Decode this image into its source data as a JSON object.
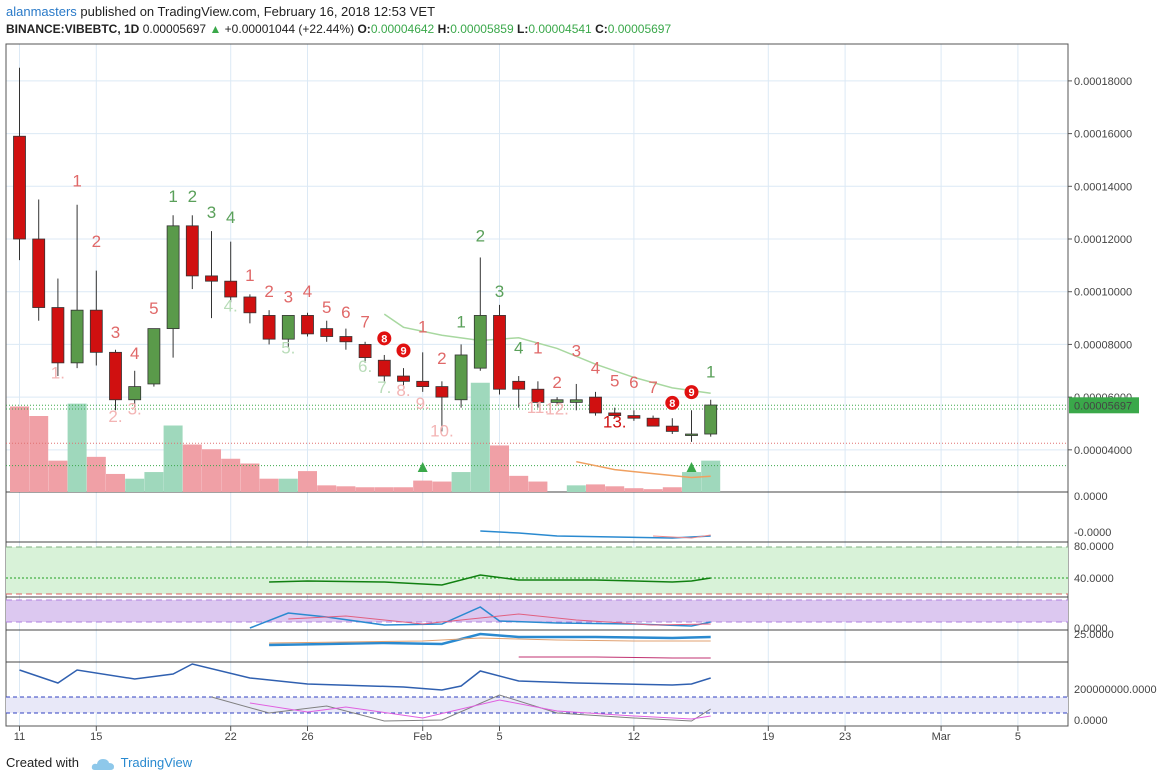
{
  "header": {
    "user": "alanmasters",
    "published": " published on TradingView.com, February 16, 2018 12:53 VET",
    "symbol": "BINANCE:VIBEBTC, 1D",
    "last": "0.00005697",
    "change": "+0.00001044 (+22.44%)",
    "o_label": "O:",
    "o_value": "0.00004642",
    "h_label": "H:",
    "h_value": "0.00005859",
    "l_label": "L:",
    "l_value": "0.00004541",
    "c_label": "C:",
    "c_value": "0.00005697"
  },
  "footer": {
    "created": "Created with",
    "brand": "TradingView"
  },
  "colors": {
    "up": "#5a9a4a",
    "down": "#d01010",
    "volUp": "#9fd8bc",
    "volDown": "#f0a0a6",
    "grid": "#dce9f5",
    "priceTag": "#3aa84a"
  },
  "chart_data": {
    "type": "candlestick",
    "x_ticks": [
      {
        "label": "11",
        "i": 0
      },
      {
        "label": "15",
        "i": 4
      },
      {
        "label": "22",
        "i": 11
      },
      {
        "label": "26",
        "i": 15
      },
      {
        "label": "Feb",
        "i": 21
      },
      {
        "label": "5",
        "i": 25
      },
      {
        "label": "12",
        "i": 32
      },
      {
        "label": "19",
        "i": 39
      },
      {
        "label": "23",
        "i": 43
      },
      {
        "label": "Mar",
        "i": 48
      },
      {
        "label": "5",
        "i": 52
      }
    ],
    "y_ticks": [
      "0.00018000",
      "0.00016000",
      "0.00014000",
      "0.00012000",
      "0.00010000",
      "0.00008000",
      "0.00006000",
      "0.00004000"
    ],
    "y_tick_values": [
      0.00018,
      0.00016,
      0.00014,
      0.00012,
      0.0001,
      8e-05,
      6e-05,
      4e-05
    ],
    "ylim": [
      2.4e-05,
      0.000194
    ],
    "last_price_tag": "0.00005697",
    "candles": [
      {
        "o": 0.000159,
        "h": 0.000185,
        "l": 0.000112,
        "c": 0.00012
      },
      {
        "o": 0.00012,
        "h": 0.000135,
        "l": 8.9e-05,
        "c": 9.4e-05
      },
      {
        "o": 9.4e-05,
        "h": 0.000105,
        "l": 6.8e-05,
        "c": 7.3e-05
      },
      {
        "o": 7.3e-05,
        "h": 0.000133,
        "l": 7.1e-05,
        "c": 9.3e-05
      },
      {
        "o": 9.3e-05,
        "h": 0.000108,
        "l": 7.2e-05,
        "c": 7.7e-05
      },
      {
        "o": 7.7e-05,
        "h": 7.8e-05,
        "l": 5.5e-05,
        "c": 5.9e-05
      },
      {
        "o": 5.9e-05,
        "h": 7e-05,
        "l": 5.6e-05,
        "c": 6.4e-05
      },
      {
        "o": 6.5e-05,
        "h": 8.6e-05,
        "l": 6.4e-05,
        "c": 8.6e-05
      },
      {
        "o": 8.6e-05,
        "h": 0.000129,
        "l": 7.5e-05,
        "c": 0.000125
      },
      {
        "o": 0.000125,
        "h": 0.000129,
        "l": 0.000101,
        "c": 0.000106
      },
      {
        "o": 0.000106,
        "h": 0.000123,
        "l": 9e-05,
        "c": 0.000104
      },
      {
        "o": 0.000104,
        "h": 0.000119,
        "l": 9.6e-05,
        "c": 9.8e-05
      },
      {
        "o": 9.8e-05,
        "h": 9.9e-05,
        "l": 8.8e-05,
        "c": 9.2e-05
      },
      {
        "o": 9.1e-05,
        "h": 9.3e-05,
        "l": 8e-05,
        "c": 8.2e-05
      },
      {
        "o": 8.2e-05,
        "h": 9.1e-05,
        "l": 7.9e-05,
        "c": 9.1e-05
      },
      {
        "o": 9.1e-05,
        "h": 9.2e-05,
        "l": 8.3e-05,
        "c": 8.4e-05
      },
      {
        "o": 8.6e-05,
        "h": 8.9e-05,
        "l": 8.1e-05,
        "c": 8.3e-05
      },
      {
        "o": 8.3e-05,
        "h": 8.6e-05,
        "l": 7.8e-05,
        "c": 8.1e-05
      },
      {
        "o": 8e-05,
        "h": 8.1e-05,
        "l": 7.3e-05,
        "c": 7.5e-05
      },
      {
        "o": 7.4e-05,
        "h": 7.6e-05,
        "l": 6.6e-05,
        "c": 6.8e-05
      },
      {
        "o": 6.8e-05,
        "h": 7.1e-05,
        "l": 6.4e-05,
        "c": 6.6e-05
      },
      {
        "o": 6.6e-05,
        "h": 7.7e-05,
        "l": 6.2e-05,
        "c": 6.4e-05
      },
      {
        "o": 6.4e-05,
        "h": 6.6e-05,
        "l": 4.7e-05,
        "c": 6e-05
      },
      {
        "o": 5.9e-05,
        "h": 8e-05,
        "l": 5.6e-05,
        "c": 7.6e-05
      },
      {
        "o": 7.1e-05,
        "h": 0.000113,
        "l": 7e-05,
        "c": 9.1e-05
      },
      {
        "o": 9.1e-05,
        "h": 9.5e-05,
        "l": 6.1e-05,
        "c": 6.3e-05
      },
      {
        "o": 6.6e-05,
        "h": 6.8e-05,
        "l": 5.6e-05,
        "c": 6.3e-05
      },
      {
        "o": 6.3e-05,
        "h": 6.6e-05,
        "l": 5.6e-05,
        "c": 5.8e-05
      },
      {
        "o": 5.8e-05,
        "h": 6e-05,
        "l": 5.7e-05,
        "c": 5.9e-05
      },
      {
        "o": 5.8e-05,
        "h": 6.5e-05,
        "l": 5.5e-05,
        "c": 5.9e-05
      },
      {
        "o": 6e-05,
        "h": 6.2e-05,
        "l": 5.3e-05,
        "c": 5.4e-05
      },
      {
        "o": 5.4e-05,
        "h": 5.6e-05,
        "l": 5.2e-05,
        "c": 5.3e-05
      },
      {
        "o": 5.3e-05,
        "h": 5.5e-05,
        "l": 5.1e-05,
        "c": 5.2e-05
      },
      {
        "o": 5.2e-05,
        "h": 5.3e-05,
        "l": 4.9e-05,
        "c": 4.9e-05
      },
      {
        "o": 4.9e-05,
        "h": 5.2e-05,
        "l": 4.6e-05,
        "c": 4.7e-05
      },
      {
        "o": 4.6e-05,
        "h": 5.5e-05,
        "l": 4.3e-05,
        "c": 4.6e-05
      },
      {
        "o": 4.6e-05,
        "h": 5.9e-05,
        "l": 4.5e-05,
        "c": 5.7e-05
      }
    ],
    "volume": [
      {
        "v": 0.9,
        "up": false
      },
      {
        "v": 0.8,
        "up": false
      },
      {
        "v": 0.33,
        "up": false
      },
      {
        "v": 0.93,
        "up": true
      },
      {
        "v": 0.37,
        "up": false
      },
      {
        "v": 0.19,
        "up": false
      },
      {
        "v": 0.14,
        "up": true
      },
      {
        "v": 0.21,
        "up": true
      },
      {
        "v": 0.7,
        "up": true
      },
      {
        "v": 0.5,
        "up": false
      },
      {
        "v": 0.45,
        "up": false
      },
      {
        "v": 0.35,
        "up": false
      },
      {
        "v": 0.3,
        "up": false
      },
      {
        "v": 0.14,
        "up": false
      },
      {
        "v": 0.14,
        "up": true
      },
      {
        "v": 0.22,
        "up": false
      },
      {
        "v": 0.07,
        "up": false
      },
      {
        "v": 0.06,
        "up": false
      },
      {
        "v": 0.05,
        "up": false
      },
      {
        "v": 0.05,
        "up": false
      },
      {
        "v": 0.05,
        "up": false
      },
      {
        "v": 0.12,
        "up": false
      },
      {
        "v": 0.11,
        "up": false
      },
      {
        "v": 0.21,
        "up": true
      },
      {
        "v": 1.15,
        "up": true
      },
      {
        "v": 0.49,
        "up": false
      },
      {
        "v": 0.17,
        "up": false
      },
      {
        "v": 0.11,
        "up": false
      },
      {
        "v": 0.0,
        "up": false
      },
      {
        "v": 0.07,
        "up": true
      },
      {
        "v": 0.08,
        "up": false
      },
      {
        "v": 0.06,
        "up": false
      },
      {
        "v": 0.04,
        "up": false
      },
      {
        "v": 0.03,
        "up": false
      },
      {
        "v": 0.05,
        "up": false
      },
      {
        "v": 0.21,
        "up": true
      },
      {
        "v": 0.33,
        "up": true
      }
    ],
    "td_labels": [
      {
        "i": 3,
        "text": "1",
        "color": "#e06868",
        "y": 0.00014
      },
      {
        "i": 4,
        "text": "2",
        "color": "#e06868",
        "y": 0.000117
      },
      {
        "i": 5,
        "text": "3",
        "color": "#e06868",
        "y": 8.25e-05
      },
      {
        "i": 6,
        "text": "4",
        "color": "#e06868",
        "y": 7.45e-05
      },
      {
        "i": 7,
        "text": "5",
        "color": "#e06868",
        "y": 9.15e-05
      },
      {
        "i": 8,
        "text": "1",
        "color": "#5aa05a",
        "y": 0.000134
      },
      {
        "i": 9,
        "text": "2",
        "color": "#5aa05a",
        "y": 0.000134
      },
      {
        "i": 10,
        "text": "3",
        "color": "#5aa05a",
        "y": 0.000128
      },
      {
        "i": 11,
        "text": "4",
        "color": "#5aa05a",
        "y": 0.000126
      },
      {
        "i": 12,
        "text": "1",
        "color": "#e06868",
        "y": 0.000104
      },
      {
        "i": 13,
        "text": "2",
        "color": "#e06868",
        "y": 9.8e-05
      },
      {
        "i": 14,
        "text": "3",
        "color": "#e06868",
        "y": 9.6e-05
      },
      {
        "i": 15,
        "text": "4",
        "color": "#e06868",
        "y": 9.8e-05
      },
      {
        "i": 16,
        "text": "5",
        "color": "#e06868",
        "y": 9.2e-05
      },
      {
        "i": 17,
        "text": "6",
        "color": "#e06868",
        "y": 9e-05
      },
      {
        "i": 18,
        "text": "7",
        "color": "#e06868",
        "y": 8.65e-05
      },
      {
        "i": 21,
        "text": "1",
        "color": "#e06868",
        "y": 8.45e-05
      },
      {
        "i": 22,
        "text": "2",
        "color": "#e06868",
        "y": 7.25e-05
      },
      {
        "i": 23,
        "text": "1",
        "color": "#5aa05a",
        "y": 8.65e-05
      },
      {
        "i": 24,
        "text": "2",
        "color": "#5aa05a",
        "y": 0.000119
      },
      {
        "i": 25,
        "text": "3",
        "color": "#5aa05a",
        "y": 9.8e-05
      },
      {
        "i": 26,
        "text": "4",
        "color": "#5aa05a",
        "y": 7.65e-05
      },
      {
        "i": 27,
        "text": "1",
        "color": "#e06868",
        "y": 7.65e-05
      },
      {
        "i": 28,
        "text": "2",
        "color": "#e06868",
        "y": 6.35e-05
      },
      {
        "i": 29,
        "text": "3",
        "color": "#e06868",
        "y": 7.55e-05
      },
      {
        "i": 30,
        "text": "4",
        "color": "#e06868",
        "y": 6.9e-05
      },
      {
        "i": 31,
        "text": "5",
        "color": "#e06868",
        "y": 6.4e-05
      },
      {
        "i": 32,
        "text": "6",
        "color": "#e06868",
        "y": 6.35e-05
      },
      {
        "i": 33,
        "text": "7",
        "color": "#e06868",
        "y": 6.15e-05
      },
      {
        "i": 36,
        "text": "1",
        "color": "#5aa05a",
        "y": 6.75e-05
      },
      {
        "i": 2,
        "text": "1.",
        "color": "#f3b4b4",
        "y": 6.7e-05
      },
      {
        "i": 5,
        "text": "2.",
        "color": "#f3b4b4",
        "y": 5.05e-05
      },
      {
        "i": 6,
        "text": "3.",
        "color": "#f3b4b4",
        "y": 5.35e-05
      },
      {
        "i": 11,
        "text": "4.",
        "color": "#b8dcb8",
        "y": 9.25e-05
      },
      {
        "i": 14,
        "text": "5.",
        "color": "#b8dcb8",
        "y": 7.65e-05
      },
      {
        "i": 18,
        "text": "6.",
        "color": "#b8dcb8",
        "y": 6.95e-05
      },
      {
        "i": 19,
        "text": "7.",
        "color": "#b8dcb8",
        "y": 6.15e-05
      },
      {
        "i": 20,
        "text": "8.",
        "color": "#f3b4b4",
        "y": 6.05e-05
      },
      {
        "i": 21,
        "text": "9.",
        "color": "#f3b4b4",
        "y": 5.55e-05
      },
      {
        "i": 22,
        "text": "10.",
        "color": "#f3b4b4",
        "y": 4.5e-05
      },
      {
        "i": 27,
        "text": "11.",
        "color": "#f3b4b4",
        "y": 5.4e-05
      },
      {
        "i": 28,
        "text": "12.",
        "color": "#f3b4b4",
        "y": 5.35e-05
      },
      {
        "i": 31,
        "text": "13.",
        "color": "#d01010",
        "y": 4.85e-05
      }
    ],
    "nine_markers": [
      {
        "i": 19,
        "text": "8",
        "y": 8.23e-05
      },
      {
        "i": 20,
        "text": "9",
        "y": 7.77e-05
      },
      {
        "i": 34,
        "text": "8",
        "y": 5.78e-05
      },
      {
        "i": 35,
        "text": "9",
        "y": 6.19e-05
      }
    ],
    "up_triangles": [
      {
        "i": 21,
        "y": 3.35e-05
      },
      {
        "i": 35,
        "y": 3.35e-05
      }
    ],
    "ma_green": [
      [
        19,
        9.15e-05
      ],
      [
        20,
        8.65e-05
      ],
      [
        22,
        8.35e-05
      ],
      [
        24,
        8.15e-05
      ],
      [
        26,
        8.25e-05
      ],
      [
        28,
        7.85e-05
      ],
      [
        30,
        7.25e-05
      ],
      [
        32,
        6.75e-05
      ],
      [
        34,
        6.35e-05
      ],
      [
        36,
        6.15e-05
      ]
    ],
    "ma_orange": [
      [
        29,
        3.55e-05
      ],
      [
        31,
        3.25e-05
      ],
      [
        33,
        3.1e-05
      ],
      [
        35,
        2.95e-05
      ],
      [
        36,
        3e-05
      ]
    ],
    "pane_labels": {
      "p1": [
        "0.0000",
        "-0.0000"
      ],
      "p2": [
        "80.0000",
        "40.0000"
      ],
      "p3": [
        "0.0000"
      ],
      "p4": [
        "25.0000"
      ],
      "p5": [
        "200000000.0000",
        "0.0000"
      ]
    }
  }
}
